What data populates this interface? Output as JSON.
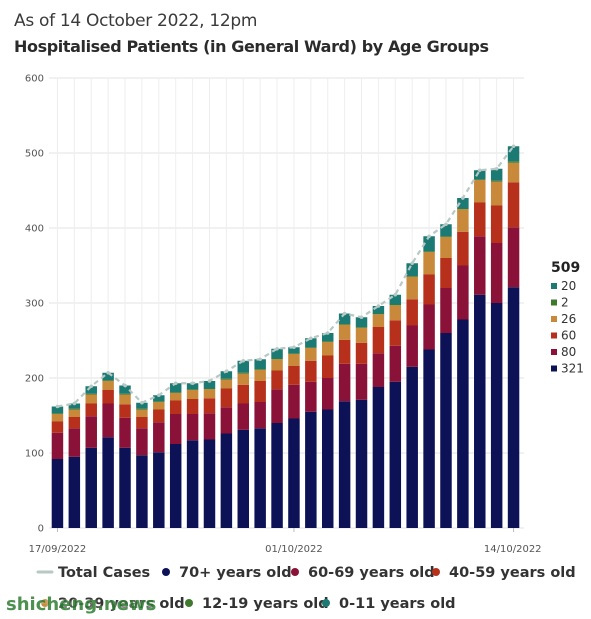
{
  "subtitle": "As of 14 October 2022, 12pm",
  "title": "Hospitalised Patients (in General Ward) by Age Groups",
  "watermark": "shicheng.news",
  "colors": {
    "total": "#b8c8c4",
    "age_70_plus": "#0d1257",
    "age_60_69": "#8a1138",
    "age_40_59": "#b6301c",
    "age_20_39": "#c8893a",
    "age_12_19": "#3f7a2c",
    "age_0_11": "#1c7a74",
    "grid": "#e3e3e3"
  },
  "chart_data": {
    "type": "bar",
    "stacked": true,
    "x_tick_labels": [
      "17/09/2022",
      "01/10/2022",
      "14/10/2022"
    ],
    "x_tick_index": [
      0,
      14,
      27
    ],
    "ylim": [
      0,
      600
    ],
    "y_ticks": [
      0,
      100,
      200,
      300,
      400,
      500,
      600
    ],
    "grid": true,
    "legend_position": "bottom",
    "series": [
      {
        "name": "70+ years old",
        "color_key": "age_70_plus",
        "values": [
          92,
          95,
          107,
          121,
          107,
          97,
          101,
          112,
          117,
          118,
          126,
          131,
          133,
          140,
          146,
          155,
          158,
          169,
          171,
          188,
          195,
          215,
          238,
          260,
          278,
          311,
          300,
          321
        ]
      },
      {
        "name": "60-69 years old",
        "color_key": "age_60_69",
        "values": [
          35,
          38,
          42,
          45,
          40,
          36,
          40,
          40,
          35,
          35,
          35,
          35,
          35,
          45,
          45,
          40,
          42,
          50,
          48,
          45,
          48,
          55,
          60,
          60,
          72,
          78,
          80,
          80
        ]
      },
      {
        "name": "40-59 years old",
        "color_key": "age_40_59",
        "values": [
          15,
          15,
          17,
          18,
          18,
          15,
          17,
          18,
          20,
          20,
          25,
          25,
          28,
          25,
          25,
          28,
          30,
          32,
          28,
          35,
          34,
          35,
          40,
          40,
          45,
          45,
          50,
          60
        ]
      },
      {
        "name": "20-39 years old",
        "color_key": "age_20_39",
        "values": [
          10,
          10,
          12,
          12,
          13,
          10,
          10,
          10,
          12,
          12,
          12,
          15,
          15,
          15,
          16,
          17,
          18,
          20,
          20,
          17,
          20,
          30,
          30,
          28,
          30,
          30,
          32,
          26
        ]
      },
      {
        "name": "12-19 years old",
        "color_key": "age_12_19",
        "values": [
          1,
          1,
          1,
          1,
          1,
          1,
          1,
          1,
          1,
          1,
          1,
          1,
          1,
          1,
          1,
          1,
          1,
          1,
          1,
          1,
          1,
          1,
          1,
          1,
          1,
          1,
          1,
          2
        ]
      },
      {
        "name": "0-11 years old",
        "color_key": "age_0_11",
        "values": [
          9,
          7,
          10,
          10,
          11,
          8,
          8,
          12,
          8,
          10,
          10,
          16,
          13,
          13,
          8,
          12,
          11,
          14,
          13,
          10,
          13,
          17,
          20,
          16,
          14,
          12,
          16,
          20
        ]
      }
    ],
    "total_series": {
      "name": "Total Cases",
      "values": [
        162,
        166,
        189,
        207,
        190,
        167,
        177,
        193,
        193,
        196,
        209,
        223,
        225,
        239,
        241,
        253,
        260,
        286,
        281,
        296,
        311,
        353,
        389,
        405,
        440,
        477,
        479,
        509
      ]
    },
    "latest_summary": {
      "total": "509",
      "values": [
        {
          "label": "20",
          "color_key": "age_0_11"
        },
        {
          "label": "2",
          "color_key": "age_12_19"
        },
        {
          "label": "26",
          "color_key": "age_20_39"
        },
        {
          "label": "60",
          "color_key": "age_40_59"
        },
        {
          "label": "80",
          "color_key": "age_60_69"
        },
        {
          "label": "321",
          "color_key": "age_70_plus"
        }
      ]
    },
    "legend": [
      {
        "label": "Total Cases",
        "style": "line",
        "color_key": "total"
      },
      {
        "label": "70+ years old",
        "style": "dot",
        "color_key": "age_70_plus"
      },
      {
        "label": "60-69 years old",
        "style": "dot",
        "color_key": "age_60_69"
      },
      {
        "label": "40-59 years old",
        "style": "dot",
        "color_key": "age_40_59"
      },
      {
        "label": "20-39 years old",
        "style": "dot",
        "color_key": "age_20_39"
      },
      {
        "label": "12-19 years old",
        "style": "dot",
        "color_key": "age_12_19"
      },
      {
        "label": "0-11 years old",
        "style": "dot",
        "color_key": "age_0_11"
      }
    ]
  }
}
